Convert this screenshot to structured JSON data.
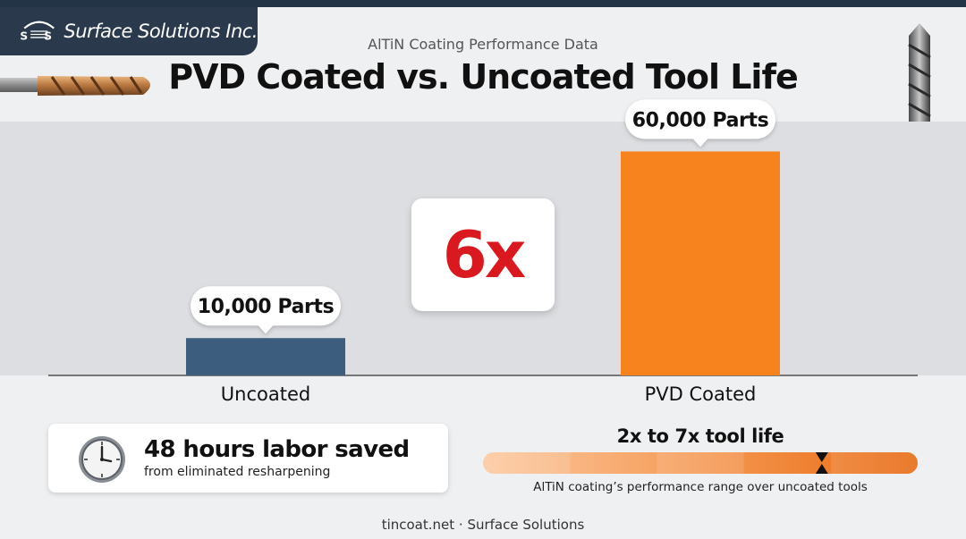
{
  "brand": {
    "name": "Surface Solutions Inc.",
    "mark_letters": "S S",
    "colors": {
      "header": "#2a3a4c",
      "accent_red": "#d9191f"
    }
  },
  "header": {
    "subtitle": "AlTiN Coating Performance Data",
    "title": "PVD Coated vs. Uncoated Tool Life"
  },
  "chart_data": {
    "type": "bar",
    "categories": [
      "Uncoated",
      "PVD Coated"
    ],
    "values": [
      10000,
      60000
    ],
    "data_labels": [
      "10,000 Parts",
      "60,000 Parts"
    ],
    "colors": [
      "#3c5d7e",
      "#f7831e"
    ],
    "unit": "Parts",
    "ylim": [
      0,
      68000
    ],
    "grid": false,
    "legend": "none",
    "annotation": "6x",
    "title": "",
    "xlabel": "",
    "ylabel": ""
  },
  "labor": {
    "icon": "clock-icon",
    "title": "48 hours labor saved",
    "subtitle": "from eliminated resharpening"
  },
  "range": {
    "title": "2x to 7x tool life",
    "caption": "AlTiN coating’s performance range over uncoated tools",
    "min": 2,
    "max": 7,
    "marker_value": 6
  },
  "footer": {
    "text": "tincoat.net · Surface Solutions"
  }
}
